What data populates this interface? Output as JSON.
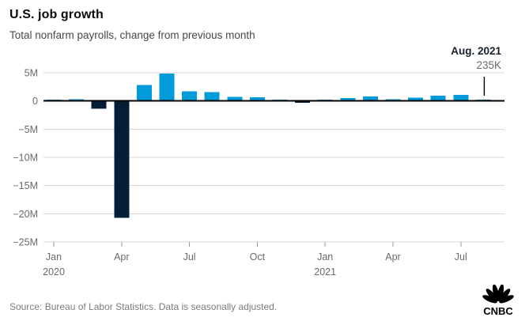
{
  "chart_data": {
    "type": "bar",
    "title": "U.S. job growth",
    "subtitle": "Total nonfarm payrolls, change from previous month",
    "unit": "millions of jobs, monthly change",
    "months": [
      "Jan 2020",
      "Feb 2020",
      "Mar 2020",
      "Apr 2020",
      "May 2020",
      "Jun 2020",
      "Jul 2020",
      "Aug 2020",
      "Sep 2020",
      "Oct 2020",
      "Nov 2020",
      "Dec 2020",
      "Jan 2021",
      "Feb 2021",
      "Mar 2021",
      "Apr 2021",
      "May 2021",
      "Jun 2021",
      "Jul 2021",
      "Aug 2021"
    ],
    "values_millions": [
      0.21,
      0.27,
      -1.37,
      -20.7,
      2.83,
      4.85,
      1.73,
      1.58,
      0.72,
      0.68,
      0.26,
      -0.31,
      0.23,
      0.54,
      0.78,
      0.27,
      0.61,
      0.96,
      1.05,
      0.235
    ],
    "ylim": [
      -25,
      5
    ],
    "grid": "horizontal",
    "legend": "none",
    "y_ticks": [
      {
        "v": 5,
        "label": "5M"
      },
      {
        "v": 0,
        "label": "0"
      },
      {
        "v": -5,
        "label": "−5M"
      },
      {
        "v": -10,
        "label": "−10M"
      },
      {
        "v": -15,
        "label": "−15M"
      },
      {
        "v": -20,
        "label": "−20M"
      },
      {
        "v": -25,
        "label": "−25M"
      }
    ],
    "x_ticks": [
      {
        "i": 0,
        "label": "Jan",
        "year": "2020"
      },
      {
        "i": 3,
        "label": "Apr",
        "year": ""
      },
      {
        "i": 6,
        "label": "Jul",
        "year": ""
      },
      {
        "i": 9,
        "label": "Oct",
        "year": ""
      },
      {
        "i": 12,
        "label": "Jan",
        "year": "2021"
      },
      {
        "i": 15,
        "label": "Apr",
        "year": ""
      },
      {
        "i": 18,
        "label": "Jul",
        "year": ""
      }
    ],
    "annotation": {
      "text": "Aug. 2021",
      "value": "235K",
      "month_index": 19
    }
  },
  "footer": {
    "source": "Source: Bureau of Labor Statistics. Data is seasonally adjusted.",
    "logo": "CNBC"
  },
  "colors": {
    "positive_bar": "#009bd8",
    "negative_bar": "#041f35",
    "grid_line": "#d8d8d8",
    "zero_line": "#000000",
    "axis_text": "#6b6b6b",
    "tick_mark": "#9b9b9b",
    "annotation_line": "#000000"
  }
}
